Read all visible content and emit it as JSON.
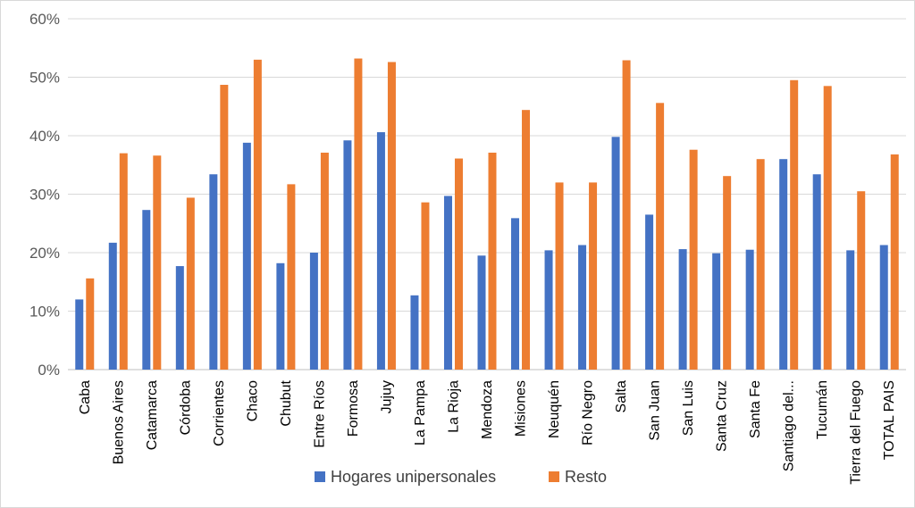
{
  "chart_data": {
    "type": "bar",
    "title": "",
    "xlabel": "",
    "ylabel": "",
    "ylim": [
      0,
      60
    ],
    "y_ticks": [
      "0%",
      "10%",
      "20%",
      "30%",
      "40%",
      "50%",
      "60%"
    ],
    "grid": true,
    "legend_position": "bottom",
    "categories": [
      "Caba",
      "Buenos Aires",
      "Catamarca",
      "Córdoba",
      "Corrientes",
      "Chaco",
      "Chubut",
      "Entre Ríos",
      "Formosa",
      "Jujuy",
      "La Pampa",
      "La Rioja",
      "Mendoza",
      "Misiones",
      "Neuquén",
      "Río Negro",
      "Salta",
      "San Juan",
      "San Luis",
      "Santa Cruz",
      "Santa Fe",
      "Santiago del...",
      "Tucumán",
      "Tierra del Fuego",
      "TOTAL PAIS"
    ],
    "series": [
      {
        "name": "Hogares unipersonales",
        "color": "#4472c4",
        "values": [
          12.0,
          21.7,
          27.3,
          17.7,
          33.4,
          38.8,
          18.2,
          20.0,
          39.2,
          40.6,
          12.7,
          29.7,
          19.5,
          25.9,
          20.4,
          21.3,
          39.8,
          26.5,
          20.6,
          19.9,
          20.5,
          36.0,
          33.4,
          20.4,
          21.3
        ]
      },
      {
        "name": "Resto",
        "color": "#ed7d31",
        "values": [
          15.6,
          37.0,
          36.6,
          29.4,
          48.7,
          53.0,
          31.7,
          37.1,
          53.2,
          52.6,
          28.6,
          36.1,
          37.1,
          44.4,
          32.0,
          32.0,
          52.9,
          45.6,
          37.6,
          33.1,
          36.0,
          49.5,
          48.5,
          30.5,
          36.8
        ]
      }
    ]
  }
}
